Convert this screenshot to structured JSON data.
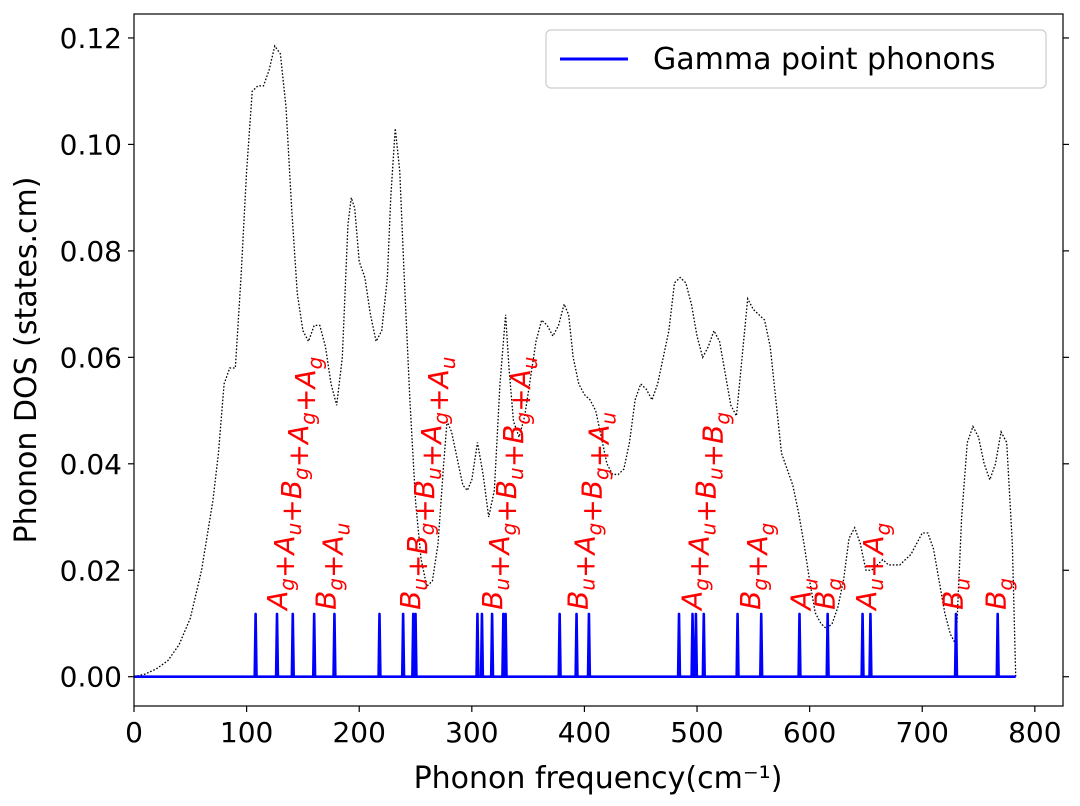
{
  "chart_data": {
    "type": "line",
    "xlabel": "Phonon frequency(cm⁻¹)",
    "ylabel": "Phonon DOS (states.cm)",
    "xlim": [
      0,
      825
    ],
    "ylim": [
      -0.0055,
      0.1245
    ],
    "x_ticks": [
      "0",
      "100",
      "200",
      "300",
      "400",
      "500",
      "600",
      "700",
      "800"
    ],
    "y_ticks": [
      "0.00",
      "0.02",
      "0.04",
      "0.06",
      "0.08",
      "0.10",
      "0.12"
    ],
    "grid": false,
    "legend": {
      "position": "top-right",
      "entries": [
        "Gamma point phonons"
      ]
    },
    "colors": {
      "gamma": "#0000ff",
      "dos": "#000000",
      "labels": "#ff0000"
    },
    "series": [
      {
        "name": "Gamma point phonons",
        "style": "solid",
        "peak_height": 0.0118,
        "peak_width": 0.8,
        "x_end": 783,
        "peaks": [
          108,
          127,
          141,
          160,
          178,
          218,
          239,
          248,
          250,
          305,
          309,
          318,
          328,
          330,
          378,
          393,
          404,
          484,
          496,
          499,
          506,
          536,
          557,
          591,
          616,
          647,
          654,
          730,
          767
        ]
      },
      {
        "name": "Phonon DOS",
        "style": "dotted",
        "points": [
          [
            0,
            0
          ],
          [
            10,
            0.0005
          ],
          [
            20,
            0.0015
          ],
          [
            30,
            0.003
          ],
          [
            40,
            0.006
          ],
          [
            50,
            0.011
          ],
          [
            60,
            0.02
          ],
          [
            70,
            0.033
          ],
          [
            75,
            0.042
          ],
          [
            80,
            0.055
          ],
          [
            85,
            0.058
          ],
          [
            90,
            0.058
          ],
          [
            95,
            0.075
          ],
          [
            100,
            0.095
          ],
          [
            105,
            0.11
          ],
          [
            110,
            0.111
          ],
          [
            115,
            0.111
          ],
          [
            120,
            0.114
          ],
          [
            125,
            0.1185
          ],
          [
            130,
            0.117
          ],
          [
            135,
            0.107
          ],
          [
            140,
            0.088
          ],
          [
            145,
            0.072
          ],
          [
            150,
            0.065
          ],
          [
            155,
            0.063
          ],
          [
            160,
            0.066
          ],
          [
            165,
            0.066
          ],
          [
            170,
            0.062
          ],
          [
            175,
            0.055
          ],
          [
            180,
            0.051
          ],
          [
            185,
            0.06
          ],
          [
            190,
            0.085
          ],
          [
            193,
            0.09
          ],
          [
            196,
            0.088
          ],
          [
            200,
            0.078
          ],
          [
            205,
            0.075
          ],
          [
            210,
            0.068
          ],
          [
            215,
            0.063
          ],
          [
            220,
            0.065
          ],
          [
            225,
            0.075
          ],
          [
            228,
            0.09
          ],
          [
            232,
            0.103
          ],
          [
            236,
            0.095
          ],
          [
            240,
            0.075
          ],
          [
            245,
            0.052
          ],
          [
            250,
            0.033
          ],
          [
            255,
            0.022
          ],
          [
            260,
            0.017
          ],
          [
            265,
            0.018
          ],
          [
            270,
            0.025
          ],
          [
            275,
            0.04
          ],
          [
            278,
            0.048
          ],
          [
            282,
            0.046
          ],
          [
            288,
            0.04
          ],
          [
            292,
            0.036
          ],
          [
            296,
            0.035
          ],
          [
            300,
            0.037
          ],
          [
            305,
            0.044
          ],
          [
            310,
            0.038
          ],
          [
            315,
            0.03
          ],
          [
            320,
            0.035
          ],
          [
            325,
            0.055
          ],
          [
            330,
            0.068
          ],
          [
            333,
            0.058
          ],
          [
            337,
            0.048
          ],
          [
            342,
            0.045
          ],
          [
            347,
            0.049
          ],
          [
            352,
            0.056
          ],
          [
            357,
            0.063
          ],
          [
            362,
            0.067
          ],
          [
            367,
            0.066
          ],
          [
            372,
            0.064
          ],
          [
            377,
            0.066
          ],
          [
            382,
            0.07
          ],
          [
            386,
            0.068
          ],
          [
            390,
            0.06
          ],
          [
            395,
            0.055
          ],
          [
            400,
            0.053
          ],
          [
            405,
            0.052
          ],
          [
            410,
            0.05
          ],
          [
            415,
            0.045
          ],
          [
            420,
            0.04
          ],
          [
            425,
            0.038
          ],
          [
            430,
            0.038
          ],
          [
            435,
            0.039
          ],
          [
            440,
            0.044
          ],
          [
            445,
            0.052
          ],
          [
            450,
            0.055
          ],
          [
            455,
            0.054
          ],
          [
            460,
            0.052
          ],
          [
            465,
            0.055
          ],
          [
            470,
            0.06
          ],
          [
            475,
            0.065
          ],
          [
            480,
            0.074
          ],
          [
            485,
            0.075
          ],
          [
            490,
            0.074
          ],
          [
            495,
            0.07
          ],
          [
            500,
            0.064
          ],
          [
            505,
            0.06
          ],
          [
            510,
            0.062
          ],
          [
            515,
            0.065
          ],
          [
            520,
            0.063
          ],
          [
            525,
            0.057
          ],
          [
            530,
            0.051
          ],
          [
            535,
            0.049
          ],
          [
            540,
            0.06
          ],
          [
            545,
            0.071
          ],
          [
            550,
            0.069
          ],
          [
            555,
            0.068
          ],
          [
            560,
            0.067
          ],
          [
            565,
            0.062
          ],
          [
            570,
            0.052
          ],
          [
            575,
            0.042
          ],
          [
            580,
            0.039
          ],
          [
            585,
            0.036
          ],
          [
            590,
            0.031
          ],
          [
            595,
            0.025
          ],
          [
            600,
            0.018
          ],
          [
            605,
            0.012
          ],
          [
            610,
            0.01
          ],
          [
            615,
            0.009
          ],
          [
            620,
            0.01
          ],
          [
            625,
            0.013
          ],
          [
            630,
            0.018
          ],
          [
            635,
            0.026
          ],
          [
            640,
            0.028
          ],
          [
            645,
            0.025
          ],
          [
            650,
            0.02
          ],
          [
            655,
            0.02
          ],
          [
            660,
            0.021
          ],
          [
            665,
            0.022
          ],
          [
            670,
            0.021
          ],
          [
            675,
            0.021
          ],
          [
            680,
            0.021
          ],
          [
            685,
            0.022
          ],
          [
            690,
            0.023
          ],
          [
            695,
            0.025
          ],
          [
            700,
            0.027
          ],
          [
            705,
            0.027
          ],
          [
            710,
            0.024
          ],
          [
            715,
            0.018
          ],
          [
            720,
            0.012
          ],
          [
            725,
            0.008
          ],
          [
            730,
            0.006
          ],
          [
            735,
            0.03
          ],
          [
            740,
            0.044
          ],
          [
            745,
            0.047
          ],
          [
            750,
            0.045
          ],
          [
            755,
            0.04
          ],
          [
            760,
            0.037
          ],
          [
            765,
            0.04
          ],
          [
            770,
            0.046
          ],
          [
            775,
            0.044
          ],
          [
            780,
            0.025
          ],
          [
            783,
            0
          ]
        ]
      }
    ],
    "annotations": [
      {
        "x": 127,
        "text": "Ag+Au+Bg+Ag+Ag"
      },
      {
        "x": 170,
        "text": "Bg+Au"
      },
      {
        "x": 245,
        "text": "Bu+Bg+Bu+Ag+Au"
      },
      {
        "x": 318,
        "text": "Bu+Ag+Bu+Bg+Au"
      },
      {
        "x": 394,
        "text": "Bu+Ag+Bg+Au"
      },
      {
        "x": 495,
        "text": "Ag+Au+Bu+Bg"
      },
      {
        "x": 547,
        "text": "Bg+Ag"
      },
      {
        "x": 592,
        "text": "Au"
      },
      {
        "x": 613,
        "text": "Bg"
      },
      {
        "x": 650,
        "text": "Au+Ag"
      },
      {
        "x": 727,
        "text": "Bu"
      },
      {
        "x": 765,
        "text": "Bg"
      }
    ]
  }
}
